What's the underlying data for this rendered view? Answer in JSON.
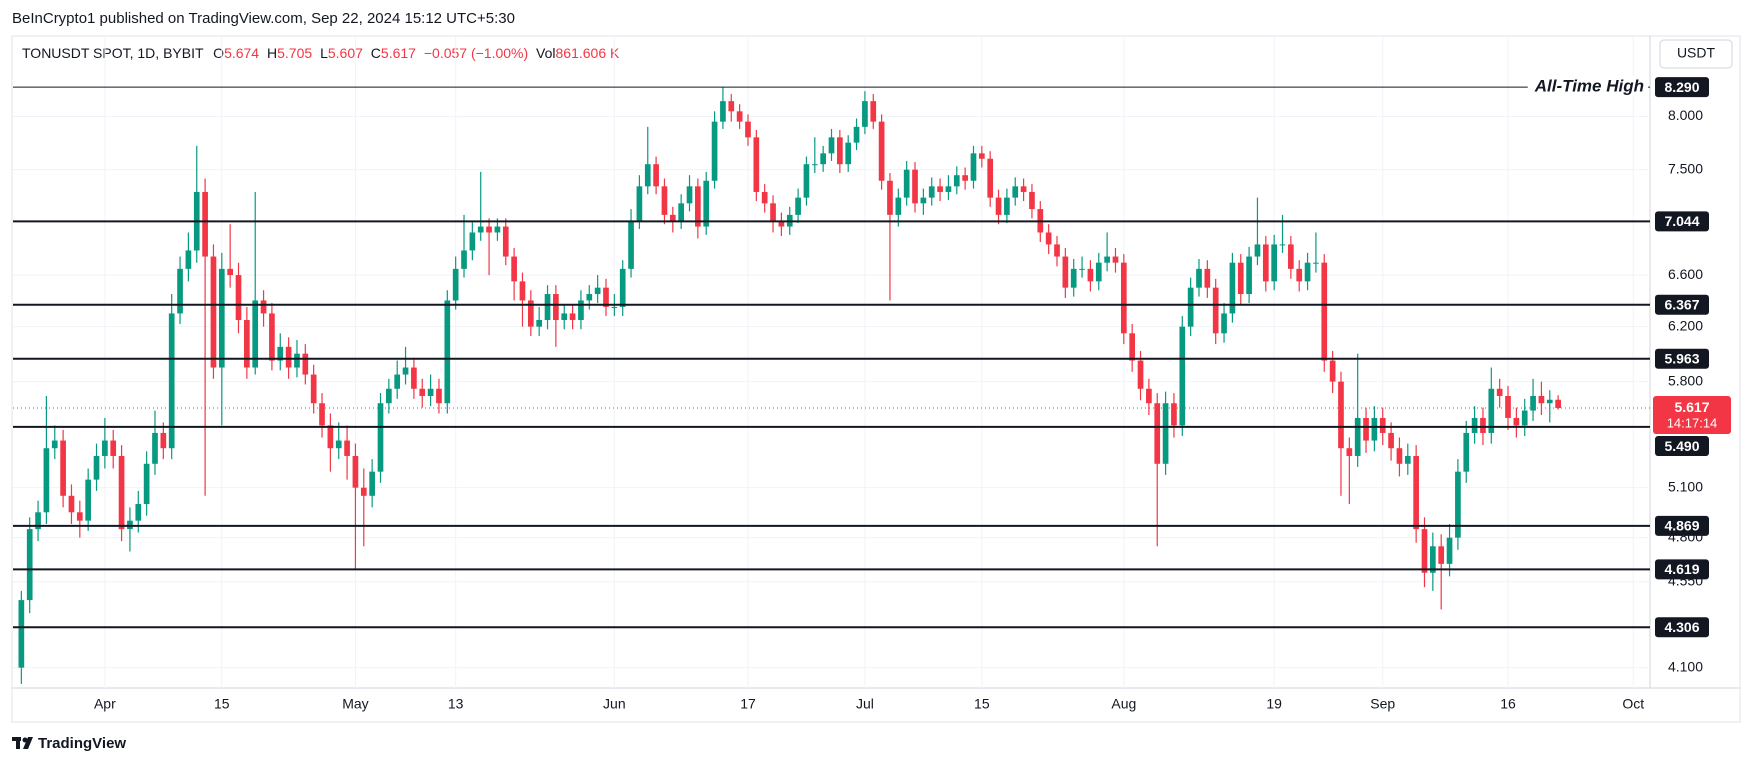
{
  "header": {
    "published": "BeInCrypto1 published on TradingView.com, Sep 22, 2024 15:12 UTC+5:30",
    "currency_button": "USDT",
    "footer_brand": "TradingView"
  },
  "chart_data": {
    "type": "candlestick",
    "symbol": "TONUSDT SPOT, 1D, BYBIT",
    "ohlc_labels": [
      "O",
      "H",
      "L",
      "C"
    ],
    "change": "−0.057 (−1.00%)",
    "volume_label": "Vol",
    "volume": "861.606 K",
    "countdown": "14:17:14",
    "up_color": "#089981",
    "down_color": "#f23645",
    "log_scale": true,
    "grid": true,
    "ylim": [
      4.0,
      8.82
    ],
    "yticks": [
      {
        "value": 8,
        "label": "8.000"
      },
      {
        "value": 7.5,
        "label": "7.500"
      },
      {
        "value": 6.6,
        "label": "6.600"
      },
      {
        "value": 6.2,
        "label": "6.200"
      },
      {
        "value": 5.8,
        "label": "5.800"
      },
      {
        "value": 5.1,
        "label": "5.100"
      },
      {
        "value": 4.8,
        "label": "4.800"
      },
      {
        "value": 4.55,
        "label": "4.550"
      },
      {
        "value": 4.1,
        "label": "4.100"
      }
    ],
    "xlim": [
      "2024-03-21",
      "2024-10-03"
    ],
    "xticks": [
      {
        "value": "2024-04-01",
        "label": "Apr"
      },
      {
        "value": "2024-04-15",
        "label": "15"
      },
      {
        "value": "2024-05-01",
        "label": "May"
      },
      {
        "value": "2024-05-13",
        "label": "13"
      },
      {
        "value": "2024-06-01",
        "label": "Jun"
      },
      {
        "value": "2024-06-17",
        "label": "17"
      },
      {
        "value": "2024-07-01",
        "label": "Jul"
      },
      {
        "value": "2024-07-15",
        "label": "15"
      },
      {
        "value": "2024-08-01",
        "label": "Aug"
      },
      {
        "value": "2024-08-19",
        "label": "19"
      },
      {
        "value": "2024-09-01",
        "label": "Sep"
      },
      {
        "value": "2024-09-16",
        "label": "16"
      },
      {
        "value": "2024-10-01",
        "label": "Oct"
      }
    ],
    "ath_label": "All-Time High",
    "levels": [
      {
        "value": 8.29,
        "label": "8.290"
      },
      {
        "value": 7.044,
        "label": "7.044"
      },
      {
        "value": 6.367,
        "label": "6.367"
      },
      {
        "value": 5.963,
        "label": "5.963"
      },
      {
        "value": 5.49,
        "label": "5.490"
      },
      {
        "value": 4.869,
        "label": "4.869"
      },
      {
        "value": 4.619,
        "label": "4.619"
      },
      {
        "value": 4.306,
        "label": "4.306"
      }
    ],
    "x": [
      "2024-03-22",
      "2024-03-23",
      "2024-03-24",
      "2024-03-25",
      "2024-03-26",
      "2024-03-27",
      "2024-03-28",
      "2024-03-29",
      "2024-03-30",
      "2024-03-31",
      "2024-04-01",
      "2024-04-02",
      "2024-04-03",
      "2024-04-04",
      "2024-04-05",
      "2024-04-06",
      "2024-04-07",
      "2024-04-08",
      "2024-04-09",
      "2024-04-10",
      "2024-04-11",
      "2024-04-12",
      "2024-04-13",
      "2024-04-14",
      "2024-04-15",
      "2024-04-16",
      "2024-04-17",
      "2024-04-18",
      "2024-04-19",
      "2024-04-20",
      "2024-04-21",
      "2024-04-22",
      "2024-04-23",
      "2024-04-24",
      "2024-04-25",
      "2024-04-26",
      "2024-04-27",
      "2024-04-28",
      "2024-04-29",
      "2024-04-30",
      "2024-05-01",
      "2024-05-02",
      "2024-05-03",
      "2024-05-04",
      "2024-05-05",
      "2024-05-06",
      "2024-05-07",
      "2024-05-08",
      "2024-05-09",
      "2024-05-10",
      "2024-05-11",
      "2024-05-12",
      "2024-05-13",
      "2024-05-14",
      "2024-05-15",
      "2024-05-16",
      "2024-05-17",
      "2024-05-18",
      "2024-05-19",
      "2024-05-20",
      "2024-05-21",
      "2024-05-22",
      "2024-05-23",
      "2024-05-24",
      "2024-05-25",
      "2024-05-26",
      "2024-05-27",
      "2024-05-28",
      "2024-05-29",
      "2024-05-30",
      "2024-05-31",
      "2024-06-01",
      "2024-06-02",
      "2024-06-03",
      "2024-06-04",
      "2024-06-05",
      "2024-06-06",
      "2024-06-07",
      "2024-06-08",
      "2024-06-09",
      "2024-06-10",
      "2024-06-11",
      "2024-06-12",
      "2024-06-13",
      "2024-06-14",
      "2024-06-15",
      "2024-06-16",
      "2024-06-17",
      "2024-06-18",
      "2024-06-19",
      "2024-06-20",
      "2024-06-21",
      "2024-06-22",
      "2024-06-23",
      "2024-06-24",
      "2024-06-25",
      "2024-06-26",
      "2024-06-27",
      "2024-06-28",
      "2024-06-29",
      "2024-06-30",
      "2024-07-01",
      "2024-07-02",
      "2024-07-03",
      "2024-07-04",
      "2024-07-05",
      "2024-07-06",
      "2024-07-07",
      "2024-07-08",
      "2024-07-09",
      "2024-07-10",
      "2024-07-11",
      "2024-07-12",
      "2024-07-13",
      "2024-07-14",
      "2024-07-15",
      "2024-07-16",
      "2024-07-17",
      "2024-07-18",
      "2024-07-19",
      "2024-07-20",
      "2024-07-21",
      "2024-07-22",
      "2024-07-23",
      "2024-07-24",
      "2024-07-25",
      "2024-07-26",
      "2024-07-27",
      "2024-07-28",
      "2024-07-29",
      "2024-07-30",
      "2024-07-31",
      "2024-08-01",
      "2024-08-02",
      "2024-08-03",
      "2024-08-04",
      "2024-08-05",
      "2024-08-06",
      "2024-08-07",
      "2024-08-08",
      "2024-08-09",
      "2024-08-10",
      "2024-08-11",
      "2024-08-12",
      "2024-08-13",
      "2024-08-14",
      "2024-08-15",
      "2024-08-16",
      "2024-08-17",
      "2024-08-18",
      "2024-08-19",
      "2024-08-20",
      "2024-08-21",
      "2024-08-22",
      "2024-08-23",
      "2024-08-24",
      "2024-08-25",
      "2024-08-26",
      "2024-08-27",
      "2024-08-28",
      "2024-08-29",
      "2024-08-30",
      "2024-08-31",
      "2024-09-01",
      "2024-09-02",
      "2024-09-03",
      "2024-09-04",
      "2024-09-05",
      "2024-09-06",
      "2024-09-07",
      "2024-09-08",
      "2024-09-09",
      "2024-09-10",
      "2024-09-11",
      "2024-09-12",
      "2024-09-13",
      "2024-09-14",
      "2024-09-15",
      "2024-09-16",
      "2024-09-17",
      "2024-09-18",
      "2024-09-19",
      "2024-09-20",
      "2024-09-21",
      "2024-09-22"
    ],
    "ohlc": [
      [
        4.1,
        4.5,
        4.02,
        4.45
      ],
      [
        4.45,
        4.92,
        4.38,
        4.85
      ],
      [
        4.85,
        5.02,
        4.78,
        4.95
      ],
      [
        4.95,
        5.7,
        4.88,
        5.35
      ],
      [
        5.35,
        5.5,
        5.28,
        5.4
      ],
      [
        5.4,
        5.47,
        4.98,
        5.05
      ],
      [
        5.05,
        5.12,
        4.88,
        4.95
      ],
      [
        4.95,
        5.02,
        4.8,
        4.9
      ],
      [
        4.9,
        5.22,
        4.84,
        5.15
      ],
      [
        5.15,
        5.38,
        5.08,
        5.3
      ],
      [
        5.3,
        5.55,
        5.22,
        5.4
      ],
      [
        5.4,
        5.47,
        5.22,
        5.3
      ],
      [
        5.3,
        5.37,
        4.78,
        4.85
      ],
      [
        4.85,
        4.98,
        4.72,
        4.9
      ],
      [
        4.9,
        5.08,
        4.83,
        5.0
      ],
      [
        5.0,
        5.33,
        4.93,
        5.25
      ],
      [
        5.25,
        5.6,
        5.18,
        5.45
      ],
      [
        5.45,
        5.52,
        5.28,
        5.35
      ],
      [
        5.35,
        6.45,
        5.28,
        6.3
      ],
      [
        6.3,
        6.75,
        6.22,
        6.65
      ],
      [
        6.65,
        6.95,
        6.55,
        6.8
      ],
      [
        6.8,
        7.72,
        6.7,
        7.3
      ],
      [
        7.3,
        7.42,
        5.05,
        6.75
      ],
      [
        6.75,
        6.85,
        5.82,
        5.9
      ],
      [
        5.9,
        6.78,
        5.5,
        6.65
      ],
      [
        6.65,
        7.02,
        6.5,
        6.6
      ],
      [
        6.6,
        6.7,
        6.15,
        6.25
      ],
      [
        6.25,
        6.35,
        5.82,
        5.9
      ],
      [
        5.9,
        7.3,
        5.85,
        6.4
      ],
      [
        6.4,
        6.48,
        6.2,
        6.3
      ],
      [
        6.3,
        6.38,
        5.88,
        5.95
      ],
      [
        5.95,
        6.15,
        5.88,
        6.05
      ],
      [
        6.05,
        6.12,
        5.82,
        5.9
      ],
      [
        5.9,
        6.1,
        5.83,
        6.0
      ],
      [
        6.0,
        6.07,
        5.78,
        5.85
      ],
      [
        5.85,
        5.92,
        5.58,
        5.65
      ],
      [
        5.65,
        5.72,
        5.42,
        5.5
      ],
      [
        5.5,
        5.58,
        5.2,
        5.35
      ],
      [
        5.35,
        5.52,
        5.28,
        5.4
      ],
      [
        5.4,
        5.5,
        5.15,
        5.3
      ],
      [
        5.3,
        5.38,
        4.62,
        5.1
      ],
      [
        5.1,
        5.22,
        4.75,
        5.05
      ],
      [
        5.05,
        5.28,
        4.98,
        5.2
      ],
      [
        5.2,
        5.72,
        5.13,
        5.65
      ],
      [
        5.65,
        5.82,
        5.58,
        5.75
      ],
      [
        5.75,
        5.95,
        5.68,
        5.85
      ],
      [
        5.85,
        6.05,
        5.78,
        5.9
      ],
      [
        5.9,
        5.97,
        5.68,
        5.75
      ],
      [
        5.75,
        5.82,
        5.62,
        5.7
      ],
      [
        5.7,
        5.85,
        5.63,
        5.75
      ],
      [
        5.75,
        5.82,
        5.58,
        5.65
      ],
      [
        5.65,
        6.48,
        5.58,
        6.4
      ],
      [
        6.4,
        6.75,
        6.33,
        6.65
      ],
      [
        6.65,
        7.1,
        6.58,
        6.8
      ],
      [
        6.8,
        7.05,
        6.72,
        6.95
      ],
      [
        6.95,
        7.48,
        6.88,
        7.0
      ],
      [
        7.0,
        7.07,
        6.6,
        6.95
      ],
      [
        6.95,
        7.07,
        6.88,
        7.0
      ],
      [
        7.0,
        7.07,
        6.68,
        6.75
      ],
      [
        6.75,
        6.82,
        6.4,
        6.55
      ],
      [
        6.55,
        6.62,
        6.2,
        6.4
      ],
      [
        6.4,
        6.48,
        6.13,
        6.2
      ],
      [
        6.2,
        6.35,
        6.13,
        6.25
      ],
      [
        6.25,
        6.52,
        6.18,
        6.45
      ],
      [
        6.45,
        6.52,
        6.05,
        6.25
      ],
      [
        6.25,
        6.37,
        6.18,
        6.3
      ],
      [
        6.3,
        6.37,
        6.18,
        6.25
      ],
      [
        6.25,
        6.48,
        6.18,
        6.4
      ],
      [
        6.4,
        6.52,
        6.33,
        6.45
      ],
      [
        6.45,
        6.6,
        6.38,
        6.5
      ],
      [
        6.5,
        6.57,
        6.28,
        6.35
      ],
      [
        6.35,
        6.45,
        6.28,
        6.35
      ],
      [
        6.35,
        6.72,
        6.28,
        6.65
      ],
      [
        6.65,
        7.15,
        6.58,
        7.05
      ],
      [
        7.05,
        7.45,
        6.98,
        7.35
      ],
      [
        7.35,
        7.9,
        7.28,
        7.55
      ],
      [
        7.55,
        7.62,
        7.28,
        7.35
      ],
      [
        7.35,
        7.42,
        7.02,
        7.1
      ],
      [
        7.1,
        7.17,
        6.95,
        7.05
      ],
      [
        7.05,
        7.28,
        6.98,
        7.2
      ],
      [
        7.2,
        7.45,
        7.13,
        7.35
      ],
      [
        7.35,
        7.42,
        6.9,
        7.0
      ],
      [
        7.0,
        7.48,
        6.93,
        7.4
      ],
      [
        7.4,
        8.05,
        7.33,
        7.95
      ],
      [
        7.95,
        8.29,
        7.88,
        8.15
      ],
      [
        8.15,
        8.22,
        7.95,
        8.05
      ],
      [
        8.05,
        8.12,
        7.88,
        7.95
      ],
      [
        7.95,
        8.02,
        7.72,
        7.8
      ],
      [
        7.8,
        7.87,
        7.22,
        7.3
      ],
      [
        7.3,
        7.37,
        7.12,
        7.2
      ],
      [
        7.2,
        7.27,
        6.95,
        7.05
      ],
      [
        7.05,
        7.12,
        6.92,
        7.0
      ],
      [
        7.0,
        7.17,
        6.93,
        7.1
      ],
      [
        7.1,
        7.33,
        7.03,
        7.25
      ],
      [
        7.25,
        7.62,
        7.18,
        7.55
      ],
      [
        7.55,
        7.8,
        7.47,
        7.55
      ],
      [
        7.55,
        7.72,
        7.48,
        7.65
      ],
      [
        7.65,
        7.88,
        7.58,
        7.8
      ],
      [
        7.8,
        7.87,
        7.47,
        7.55
      ],
      [
        7.55,
        7.82,
        7.48,
        7.75
      ],
      [
        7.75,
        7.98,
        7.68,
        7.9
      ],
      [
        7.9,
        8.25,
        7.83,
        8.15
      ],
      [
        8.15,
        8.22,
        7.88,
        7.95
      ],
      [
        7.95,
        8.02,
        7.32,
        7.4
      ],
      [
        7.4,
        7.47,
        6.4,
        7.1
      ],
      [
        7.1,
        7.33,
        7.0,
        7.25
      ],
      [
        7.25,
        7.58,
        7.18,
        7.5
      ],
      [
        7.5,
        7.57,
        7.12,
        7.2
      ],
      [
        7.2,
        7.33,
        7.1,
        7.25
      ],
      [
        7.25,
        7.43,
        7.18,
        7.35
      ],
      [
        7.35,
        7.42,
        7.22,
        7.3
      ],
      [
        7.3,
        7.45,
        7.23,
        7.35
      ],
      [
        7.35,
        7.53,
        7.28,
        7.45
      ],
      [
        7.45,
        7.52,
        7.32,
        7.4
      ],
      [
        7.4,
        7.72,
        7.33,
        7.65
      ],
      [
        7.65,
        7.72,
        7.52,
        7.6
      ],
      [
        7.6,
        7.67,
        7.17,
        7.25
      ],
      [
        7.25,
        7.32,
        7.02,
        7.1
      ],
      [
        7.1,
        7.33,
        7.03,
        7.25
      ],
      [
        7.25,
        7.43,
        7.18,
        7.35
      ],
      [
        7.35,
        7.42,
        7.22,
        7.3
      ],
      [
        7.3,
        7.37,
        7.07,
        7.15
      ],
      [
        7.15,
        7.22,
        6.87,
        6.95
      ],
      [
        6.95,
        7.02,
        6.77,
        6.85
      ],
      [
        6.85,
        6.92,
        6.67,
        6.75
      ],
      [
        6.75,
        6.82,
        6.42,
        6.5
      ],
      [
        6.5,
        6.73,
        6.43,
        6.65
      ],
      [
        6.65,
        6.75,
        6.58,
        6.65
      ],
      [
        6.65,
        6.72,
        6.47,
        6.55
      ],
      [
        6.55,
        6.78,
        6.48,
        6.7
      ],
      [
        6.7,
        6.95,
        6.63,
        6.75
      ],
      [
        6.75,
        6.82,
        6.62,
        6.7
      ],
      [
        6.7,
        6.77,
        6.07,
        6.15
      ],
      [
        6.15,
        6.22,
        5.87,
        5.95
      ],
      [
        5.95,
        6.02,
        5.67,
        5.75
      ],
      [
        5.75,
        5.82,
        5.57,
        5.65
      ],
      [
        5.65,
        5.72,
        4.75,
        5.25
      ],
      [
        5.25,
        5.73,
        5.18,
        5.65
      ],
      [
        5.65,
        5.72,
        5.42,
        5.5
      ],
      [
        5.5,
        6.28,
        5.43,
        6.2
      ],
      [
        6.2,
        6.58,
        6.13,
        6.5
      ],
      [
        6.5,
        6.73,
        6.43,
        6.65
      ],
      [
        6.65,
        6.72,
        6.42,
        6.5
      ],
      [
        6.5,
        6.57,
        6.07,
        6.15
      ],
      [
        6.15,
        6.38,
        6.08,
        6.3
      ],
      [
        6.3,
        6.78,
        6.23,
        6.7
      ],
      [
        6.7,
        6.77,
        6.37,
        6.45
      ],
      [
        6.45,
        6.83,
        6.38,
        6.75
      ],
      [
        6.75,
        7.25,
        6.68,
        6.85
      ],
      [
        6.85,
        6.92,
        6.47,
        6.55
      ],
      [
        6.55,
        6.93,
        6.48,
        6.85
      ],
      [
        6.85,
        7.1,
        6.78,
        6.85
      ],
      [
        6.85,
        6.92,
        6.57,
        6.65
      ],
      [
        6.65,
        6.72,
        6.47,
        6.55
      ],
      [
        6.55,
        6.78,
        6.48,
        6.7
      ],
      [
        6.7,
        6.95,
        6.62,
        6.7
      ],
      [
        6.7,
        6.77,
        5.87,
        5.95
      ],
      [
        5.95,
        6.02,
        5.72,
        5.8
      ],
      [
        5.8,
        5.87,
        5.05,
        5.35
      ],
      [
        5.35,
        5.42,
        5.0,
        5.3
      ],
      [
        5.3,
        6.0,
        5.23,
        5.55
      ],
      [
        5.55,
        5.62,
        5.32,
        5.4
      ],
      [
        5.4,
        5.63,
        5.33,
        5.55
      ],
      [
        5.55,
        5.62,
        5.37,
        5.45
      ],
      [
        5.45,
        5.52,
        5.27,
        5.35
      ],
      [
        5.35,
        5.42,
        5.17,
        5.25
      ],
      [
        5.25,
        5.38,
        5.18,
        5.3
      ],
      [
        5.3,
        5.37,
        4.77,
        4.85
      ],
      [
        4.85,
        4.92,
        4.52,
        4.6
      ],
      [
        4.6,
        4.83,
        4.5,
        4.75
      ],
      [
        4.75,
        4.82,
        4.4,
        4.65
      ],
      [
        4.65,
        4.88,
        4.58,
        4.8
      ],
      [
        4.8,
        5.28,
        4.73,
        5.2
      ],
      [
        5.2,
        5.53,
        5.13,
        5.45
      ],
      [
        5.45,
        5.63,
        5.38,
        5.55
      ],
      [
        5.55,
        5.62,
        5.37,
        5.45
      ],
      [
        5.45,
        5.9,
        5.38,
        5.75
      ],
      [
        5.75,
        5.82,
        5.62,
        5.7
      ],
      [
        5.7,
        5.77,
        5.47,
        5.55
      ],
      [
        5.55,
        5.62,
        5.42,
        5.5
      ],
      [
        5.5,
        5.68,
        5.43,
        5.6
      ],
      [
        5.6,
        5.82,
        5.53,
        5.7
      ],
      [
        5.7,
        5.8,
        5.57,
        5.65
      ],
      [
        5.65,
        5.74,
        5.52,
        5.674
      ],
      [
        5.674,
        5.705,
        5.607,
        5.617
      ]
    ]
  }
}
